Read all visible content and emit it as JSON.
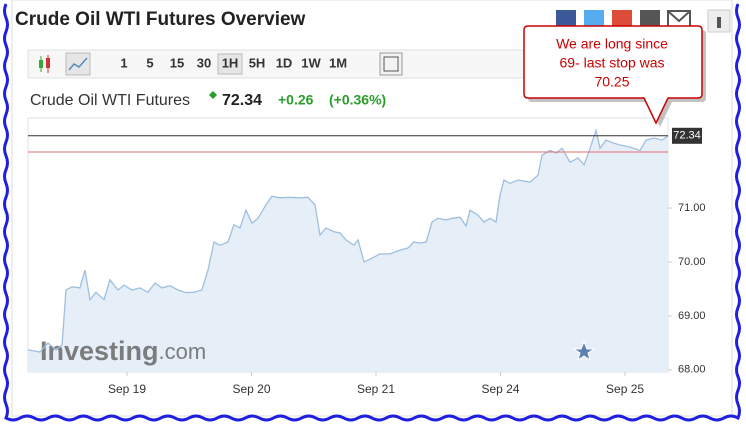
{
  "header": {
    "title": "Crude Oil WTI Futures Overview"
  },
  "toolbar": {
    "intervals": [
      "1",
      "5",
      "15",
      "30",
      "1H",
      "5H",
      "1D",
      "1W",
      "1M"
    ],
    "selected": "1H"
  },
  "callout": {
    "lines": [
      "We are long since",
      "69- last stop was",
      "70.25"
    ]
  },
  "watermark": {
    "brand": "Investing",
    "suffix": ".com"
  },
  "chart_data": {
    "type": "area",
    "title": "Crude Oil WTI Futures",
    "current_price": 72.34,
    "change": "+0.26",
    "change_percent": "(+0.36%)",
    "x": [
      0.205,
      0.301,
      0.365,
      0.43,
      0.478,
      0.51,
      0.558,
      0.622,
      0.663,
      0.703,
      0.751,
      0.815,
      0.863,
      0.928,
      0.976,
      1.04,
      1.104,
      1.169,
      1.225,
      1.281,
      1.345,
      1.41,
      1.474,
      1.538,
      1.602,
      1.651,
      1.699,
      1.747,
      1.811,
      1.859,
      1.908,
      1.956,
      2.004,
      2.052,
      2.116,
      2.165,
      2.229,
      2.309,
      2.39,
      2.454,
      2.51,
      2.55,
      2.598,
      2.663,
      2.711,
      2.759,
      2.823,
      2.855,
      2.904,
      2.968,
      3.032,
      3.112,
      3.193,
      3.257,
      3.305,
      3.353,
      3.402,
      3.45,
      3.498,
      3.562,
      3.61,
      3.675,
      3.723,
      3.755,
      3.819,
      3.867,
      3.916,
      3.964,
      3.996,
      4.028,
      4.076,
      4.141,
      4.237,
      4.301,
      4.333,
      4.398,
      4.446,
      4.494,
      4.558,
      4.622,
      4.671,
      4.719,
      4.767,
      4.799,
      4.847,
      4.912,
      4.96,
      5.04,
      5.12,
      5.169,
      5.233,
      5.297,
      5.345
    ],
    "values": [
      68.37,
      68.33,
      68.5,
      68.37,
      68.46,
      69.48,
      69.54,
      69.52,
      69.85,
      69.3,
      69.44,
      69.3,
      69.67,
      69.48,
      69.57,
      69.48,
      69.52,
      69.44,
      69.61,
      69.52,
      69.56,
      69.48,
      69.43,
      69.44,
      69.48,
      69.85,
      70.37,
      70.31,
      70.37,
      70.69,
      70.63,
      70.96,
      70.72,
      70.81,
      71.06,
      71.22,
      71.19,
      71.2,
      71.19,
      71.2,
      71.06,
      70.5,
      70.63,
      70.56,
      70.54,
      70.41,
      70.31,
      70.41,
      70.0,
      70.07,
      70.15,
      70.15,
      70.22,
      70.26,
      70.37,
      70.35,
      70.37,
      70.74,
      70.81,
      70.78,
      70.81,
      70.83,
      70.67,
      70.96,
      70.87,
      70.74,
      70.81,
      70.74,
      71.24,
      71.52,
      71.46,
      71.52,
      71.48,
      71.61,
      71.98,
      72.07,
      72.02,
      72.11,
      71.85,
      71.93,
      71.8,
      72.11,
      72.44,
      72.11,
      72.26,
      72.2,
      72.17,
      72.13,
      72.07,
      72.26,
      72.3,
      72.26,
      72.34
    ],
    "color": "#9fbfdf",
    "fill": "#e6eef7",
    "xlim": [
      0.205,
      5.345
    ],
    "xticks": [
      {
        "value": 1,
        "label": "Sep 19"
      },
      {
        "value": 2,
        "label": "Sep 20"
      },
      {
        "value": 3,
        "label": "Sep 21"
      },
      {
        "value": 4,
        "label": "Sep 24"
      },
      {
        "value": 5,
        "label": "Sep 25"
      }
    ],
    "ylim": [
      67.96,
      72.67
    ],
    "yticks": [
      {
        "value": 68,
        "label": "68.00"
      },
      {
        "value": 69,
        "label": "69.00"
      },
      {
        "value": 70,
        "label": "70.00"
      },
      {
        "value": 71,
        "label": "71.00"
      }
    ],
    "reference_line": {
      "value": 72.04,
      "color": "#e07070"
    }
  }
}
